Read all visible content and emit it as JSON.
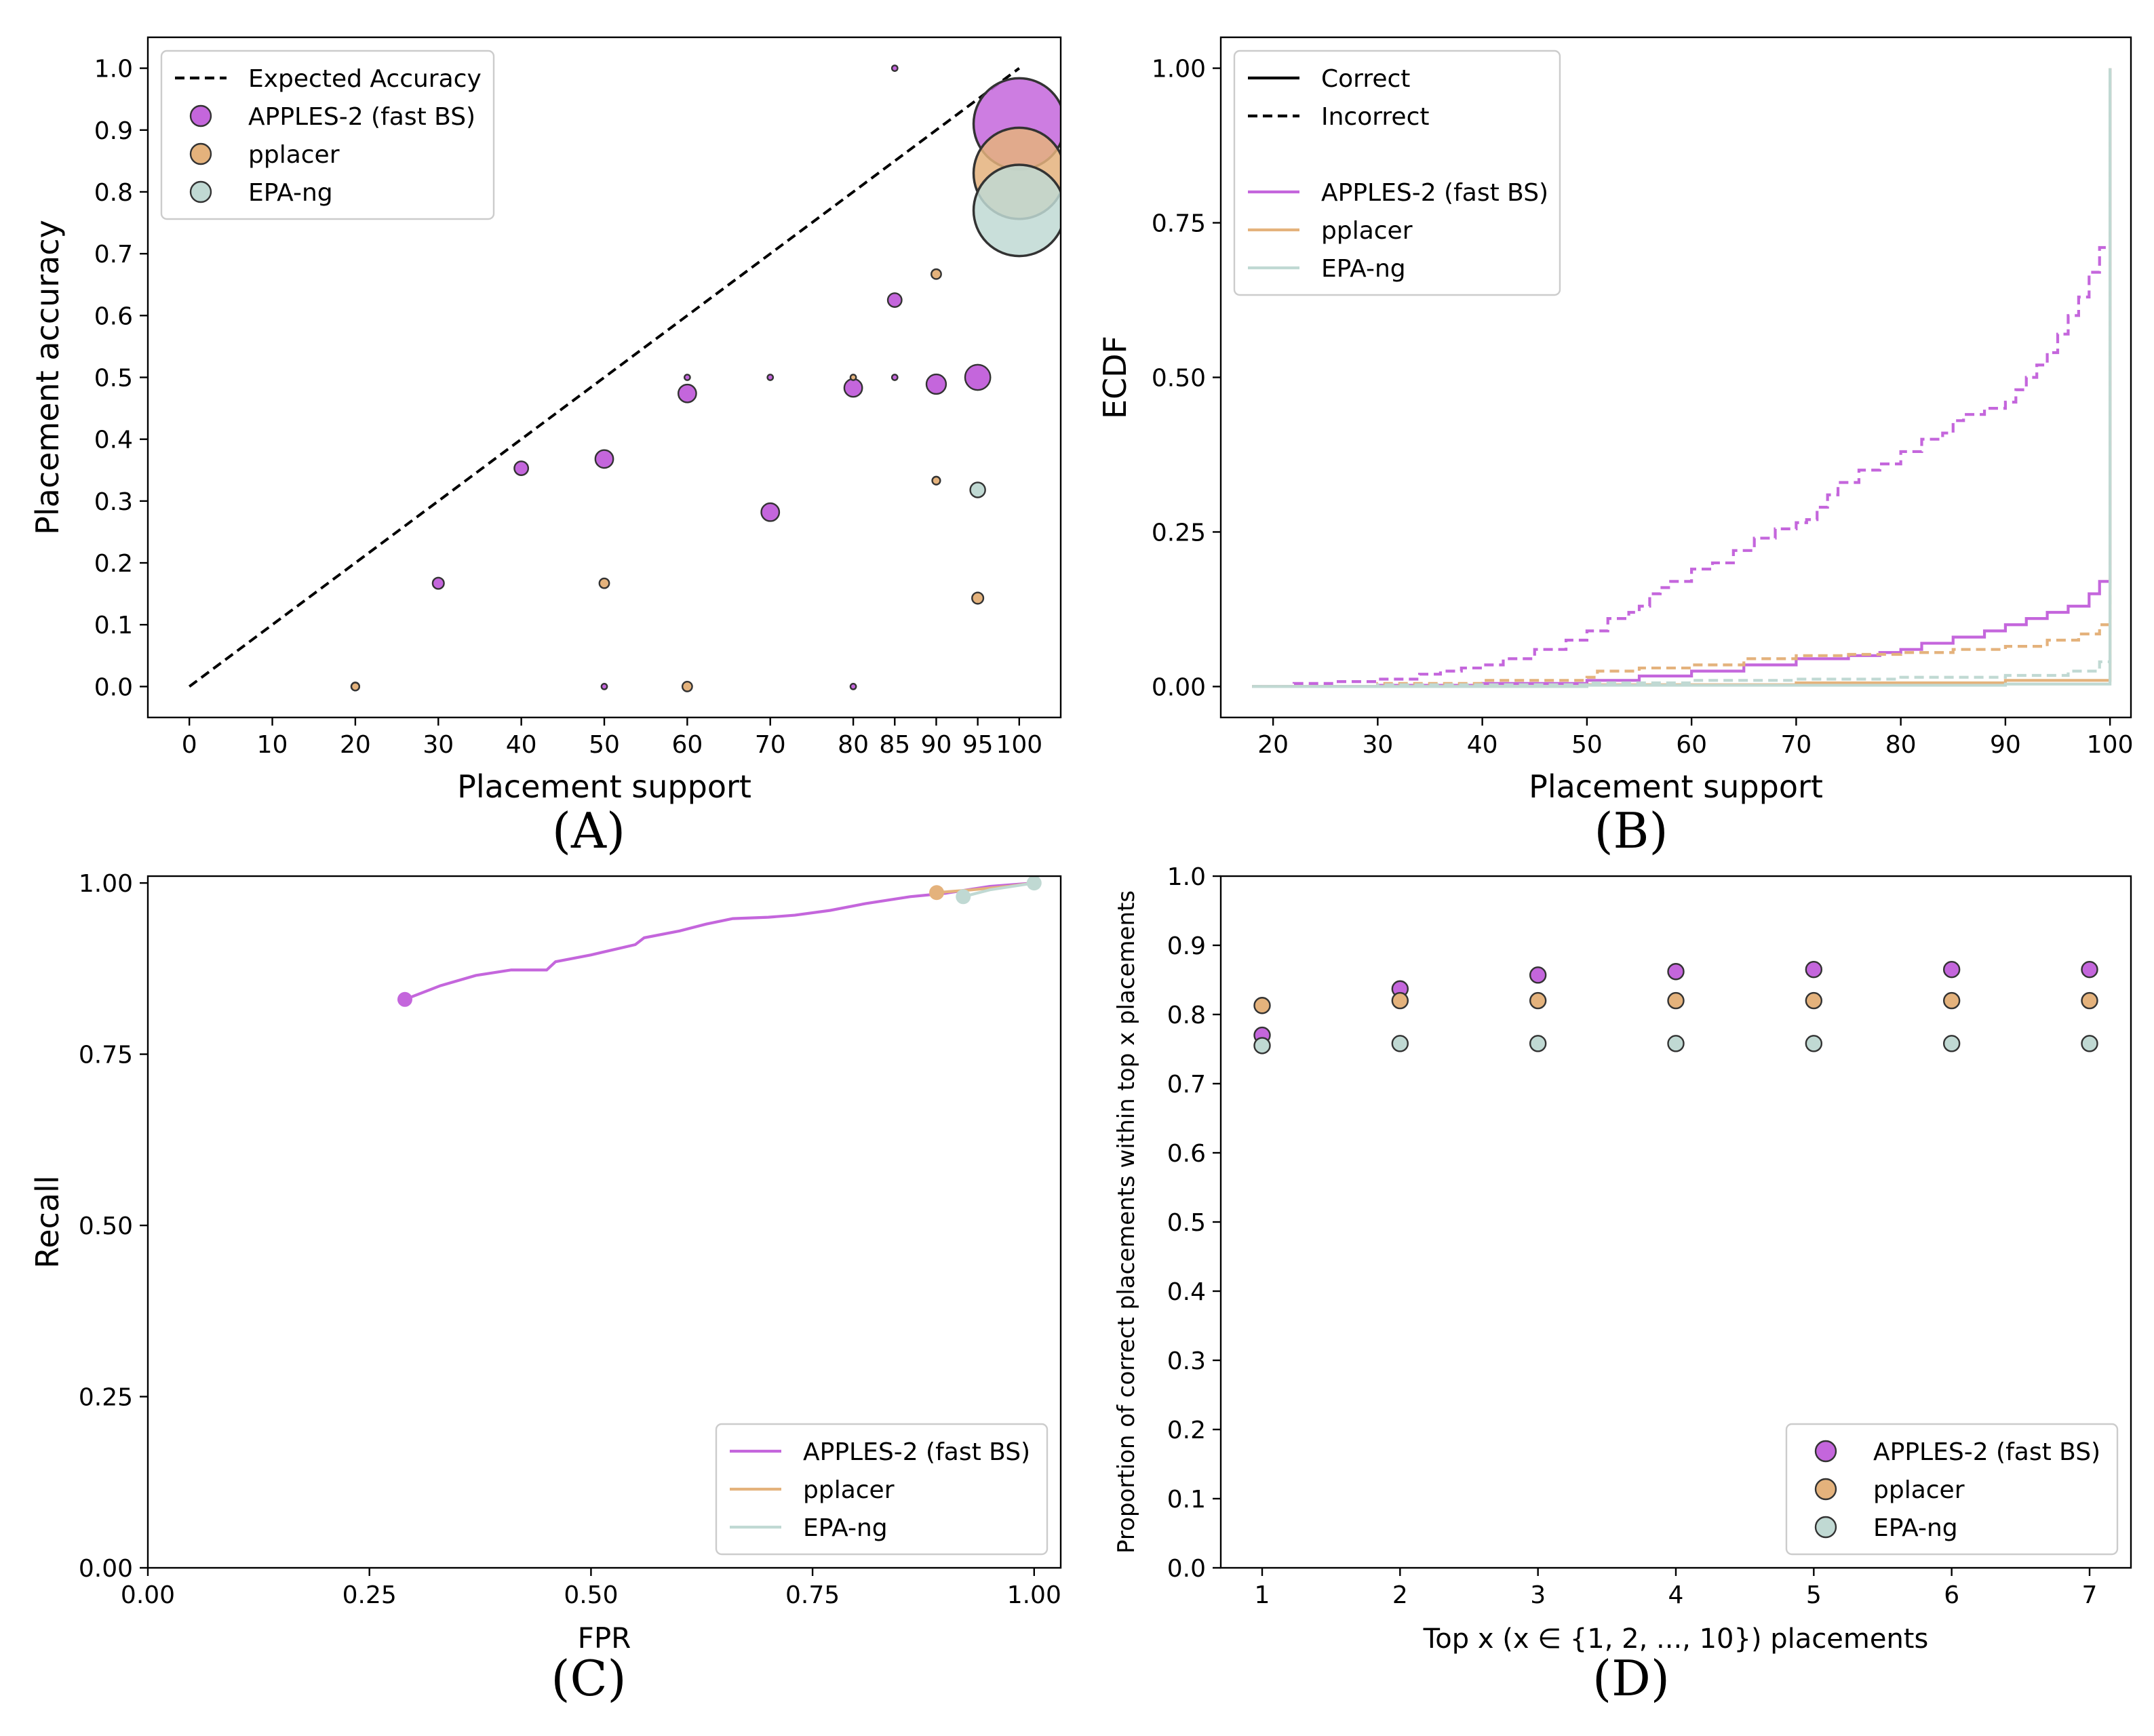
{
  "colors": {
    "apples": "#c466dc",
    "pplacer": "#e4b27c",
    "epa": "#c0d9d3",
    "edge": "#333333",
    "black": "#000000"
  },
  "chart_data": [
    {
      "id": "A",
      "panel_label": "(A)",
      "type": "scatter",
      "xlabel": "Placement support",
      "ylabel": "Placement accuracy",
      "xlim": [
        -5,
        105
      ],
      "ylim": [
        -0.05,
        1.05
      ],
      "xticks": [
        0,
        10,
        20,
        30,
        40,
        50,
        60,
        70,
        80,
        85,
        90,
        95,
        100
      ],
      "yticks": [
        0.0,
        0.1,
        0.2,
        0.3,
        0.4,
        0.5,
        0.6,
        0.7,
        0.8,
        0.9,
        1.0
      ],
      "ytick_labels": [
        "0.0",
        "0.1",
        "0.2",
        "0.3",
        "0.4",
        "0.5",
        "0.6",
        "0.7",
        "0.8",
        "0.9",
        "1.0"
      ],
      "legend": {
        "position": "upper-left",
        "entries": [
          {
            "label": "Expected Accuracy",
            "kind": "dashed-line",
            "color_key": "black"
          },
          {
            "label": "APPLES-2 (fast BS)",
            "kind": "marker",
            "color_key": "apples"
          },
          {
            "label": "pplacer",
            "kind": "marker",
            "color_key": "pplacer"
          },
          {
            "label": "EPA-ng",
            "kind": "marker",
            "color_key": "epa"
          }
        ]
      },
      "reference_line": {
        "label": "Expected Accuracy",
        "x": [
          0,
          100
        ],
        "y": [
          0,
          1
        ]
      },
      "series": [
        {
          "name": "APPLES-2 (fast BS)",
          "color_key": "apples",
          "points": [
            {
              "x": 20,
              "y": 0.0,
              "s": 1
            },
            {
              "x": 30,
              "y": 0.167,
              "s": 2
            },
            {
              "x": 40,
              "y": 0.353,
              "s": 3
            },
            {
              "x": 50,
              "y": 0.368,
              "s": 5
            },
            {
              "x": 50,
              "y": 0.0,
              "s": 0.5
            },
            {
              "x": 60,
              "y": 0.474,
              "s": 5
            },
            {
              "x": 60,
              "y": 0.5,
              "s": 0.5
            },
            {
              "x": 70,
              "y": 0.282,
              "s": 5
            },
            {
              "x": 70,
              "y": 0.5,
              "s": 0.5
            },
            {
              "x": 80,
              "y": 0.483,
              "s": 5
            },
            {
              "x": 80,
              "y": 0.0,
              "s": 0.5
            },
            {
              "x": 85,
              "y": 0.625,
              "s": 3
            },
            {
              "x": 85,
              "y": 1.0,
              "s": 0.5
            },
            {
              "x": 85,
              "y": 0.5,
              "s": 0.5
            },
            {
              "x": 90,
              "y": 0.489,
              "s": 6
            },
            {
              "x": 95,
              "y": 0.5,
              "s": 10
            },
            {
              "x": 100,
              "y": 0.91,
              "s": 130
            }
          ]
        },
        {
          "name": "pplacer",
          "color_key": "pplacer",
          "points": [
            {
              "x": 20,
              "y": 0.0,
              "s": 1
            },
            {
              "x": 50,
              "y": 0.167,
              "s": 1.5
            },
            {
              "x": 60,
              "y": 0.0,
              "s": 1.5
            },
            {
              "x": 80,
              "y": 0.5,
              "s": 0.5
            },
            {
              "x": 90,
              "y": 0.667,
              "s": 1.5
            },
            {
              "x": 90,
              "y": 0.333,
              "s": 1
            },
            {
              "x": 95,
              "y": 0.143,
              "s": 2
            },
            {
              "x": 100,
              "y": 0.83,
              "s": 130
            }
          ]
        },
        {
          "name": "EPA-ng",
          "color_key": "epa",
          "points": [
            {
              "x": 95,
              "y": 0.318,
              "s": 3.5
            },
            {
              "x": 100,
              "y": 0.77,
              "s": 130
            }
          ]
        }
      ]
    },
    {
      "id": "B",
      "panel_label": "(B)",
      "type": "line",
      "xlabel": "Placement support",
      "ylabel": "ECDF",
      "xlim": [
        15,
        102
      ],
      "ylim": [
        -0.05,
        1.05
      ],
      "xticks": [
        20,
        30,
        40,
        50,
        60,
        70,
        80,
        90,
        100
      ],
      "yticks": [
        0.0,
        0.25,
        0.5,
        0.75,
        1.0
      ],
      "ytick_labels": [
        "0.00",
        "0.25",
        "0.50",
        "0.75",
        "1.00"
      ],
      "legend": {
        "position": "upper-left",
        "entries": [
          {
            "label": "Correct",
            "kind": "solid-line",
            "color_key": "black"
          },
          {
            "label": "Incorrect",
            "kind": "dashed-line",
            "color_key": "black"
          },
          {
            "label": "APPLES-2 (fast BS)",
            "kind": "solid-line",
            "color_key": "apples"
          },
          {
            "label": "pplacer",
            "kind": "solid-line",
            "color_key": "pplacer"
          },
          {
            "label": "EPA-ng",
            "kind": "solid-line",
            "color_key": "epa"
          }
        ]
      },
      "series": [
        {
          "name": "APPLES-2 (fast BS) incorrect",
          "color_key": "apples",
          "dashed": true,
          "x": [
            18,
            22,
            26,
            30,
            34,
            36,
            38,
            40,
            42,
            45,
            48,
            50,
            52,
            54,
            55,
            56,
            57,
            58,
            60,
            62,
            64,
            66,
            68,
            70,
            71,
            72,
            73,
            74,
            76,
            78,
            80,
            82,
            84,
            85,
            86,
            88,
            90,
            91,
            92,
            93,
            94,
            95,
            96,
            97,
            98,
            99,
            100,
            100
          ],
          "y": [
            0.0,
            0.005,
            0.008,
            0.012,
            0.02,
            0.025,
            0.03,
            0.035,
            0.045,
            0.06,
            0.075,
            0.09,
            0.11,
            0.12,
            0.13,
            0.15,
            0.16,
            0.17,
            0.19,
            0.2,
            0.22,
            0.24,
            0.255,
            0.265,
            0.27,
            0.29,
            0.31,
            0.33,
            0.35,
            0.36,
            0.38,
            0.4,
            0.41,
            0.43,
            0.44,
            0.45,
            0.46,
            0.48,
            0.5,
            0.52,
            0.54,
            0.57,
            0.6,
            0.63,
            0.67,
            0.71,
            0.72,
            1.0
          ]
        },
        {
          "name": "APPLES-2 (fast BS) correct",
          "color_key": "apples",
          "dashed": false,
          "x": [
            18,
            30,
            40,
            50,
            55,
            60,
            65,
            70,
            75,
            78,
            80,
            82,
            85,
            88,
            90,
            92,
            94,
            96,
            98,
            99,
            100,
            100
          ],
          "y": [
            0.0,
            0.002,
            0.005,
            0.01,
            0.017,
            0.025,
            0.035,
            0.045,
            0.05,
            0.055,
            0.06,
            0.07,
            0.08,
            0.09,
            0.1,
            0.11,
            0.12,
            0.13,
            0.15,
            0.17,
            0.17,
            1.0
          ]
        },
        {
          "name": "pplacer incorrect",
          "color_key": "pplacer",
          "dashed": true,
          "x": [
            18,
            30,
            40,
            50,
            51,
            55,
            60,
            65,
            70,
            75,
            80,
            85,
            90,
            94,
            97,
            99,
            100,
            100
          ],
          "y": [
            0.0,
            0.005,
            0.01,
            0.015,
            0.025,
            0.03,
            0.035,
            0.045,
            0.05,
            0.052,
            0.055,
            0.06,
            0.065,
            0.075,
            0.085,
            0.1,
            0.1,
            1.0
          ]
        },
        {
          "name": "pplacer correct",
          "color_key": "pplacer",
          "dashed": false,
          "x": [
            18,
            50,
            70,
            90,
            100,
            100
          ],
          "y": [
            0.0,
            0.003,
            0.006,
            0.01,
            0.015,
            1.0
          ]
        },
        {
          "name": "EPA-ng incorrect",
          "color_key": "epa",
          "dashed": true,
          "x": [
            18,
            30,
            50,
            60,
            70,
            80,
            90,
            96,
            99,
            100,
            100
          ],
          "y": [
            0.0,
            0.003,
            0.006,
            0.01,
            0.012,
            0.015,
            0.018,
            0.025,
            0.04,
            0.055,
            1.0
          ]
        },
        {
          "name": "EPA-ng correct",
          "color_key": "epa",
          "dashed": false,
          "x": [
            18,
            50,
            90,
            100,
            100
          ],
          "y": [
            0.0,
            0.002,
            0.004,
            0.008,
            1.0
          ]
        }
      ]
    },
    {
      "id": "C",
      "panel_label": "(C)",
      "type": "line",
      "xlabel": "FPR",
      "ylabel": "Recall",
      "xlim": [
        0,
        1.03
      ],
      "ylim": [
        0,
        1.01
      ],
      "xticks": [
        0,
        0.25,
        0.5,
        0.75,
        1.0
      ],
      "xtick_labels": [
        "0.00",
        "0.25",
        "0.50",
        "0.75",
        "1.00"
      ],
      "yticks": [
        0,
        0.25,
        0.5,
        0.75,
        1.0
      ],
      "ytick_labels": [
        "0.00",
        "0.25",
        "0.50",
        "0.75",
        "1.00"
      ],
      "legend": {
        "position": "lower-right",
        "entries": [
          {
            "label": "APPLES-2 (fast BS)",
            "kind": "solid-line",
            "color_key": "apples"
          },
          {
            "label": "pplacer",
            "kind": "solid-line",
            "color_key": "pplacer"
          },
          {
            "label": "EPA-ng",
            "kind": "solid-line",
            "color_key": "epa"
          }
        ]
      },
      "series": [
        {
          "name": "APPLES-2 (fast BS)",
          "color_key": "apples",
          "x": [
            0.29,
            0.33,
            0.37,
            0.41,
            0.45,
            0.46,
            0.5,
            0.55,
            0.56,
            0.6,
            0.63,
            0.66,
            0.7,
            0.73,
            0.77,
            0.81,
            0.86,
            0.9,
            0.95,
            1.0
          ],
          "y": [
            0.83,
            0.85,
            0.865,
            0.873,
            0.873,
            0.885,
            0.895,
            0.91,
            0.92,
            0.93,
            0.94,
            0.948,
            0.95,
            0.953,
            0.96,
            0.97,
            0.98,
            0.985,
            0.995,
            1.0
          ],
          "start_marker": true
        },
        {
          "name": "pplacer",
          "color_key": "pplacer",
          "x": [
            0.89,
            0.93,
            0.97,
            1.0
          ],
          "y": [
            0.986,
            0.99,
            0.995,
            1.0
          ],
          "start_marker": true
        },
        {
          "name": "EPA-ng",
          "color_key": "epa",
          "x": [
            0.92,
            0.95,
            0.98,
            1.0
          ],
          "y": [
            0.98,
            0.99,
            0.996,
            1.0
          ],
          "start_marker": true
        },
        {
          "name": "EPA-ng end",
          "color_key": "epa",
          "x": [
            1.0
          ],
          "y": [
            1.0
          ],
          "start_marker": true
        }
      ]
    },
    {
      "id": "D",
      "panel_label": "(D)",
      "type": "scatter",
      "xlabel": "Top x (x ∈ {1, 2, ..., 10}) placements",
      "ylabel": "Proportion of correct placements within top x placements",
      "xlim": [
        0.7,
        7.3
      ],
      "ylim": [
        0,
        1.0
      ],
      "xticks": [
        1,
        2,
        3,
        4,
        5,
        6,
        7
      ],
      "yticks": [
        0.0,
        0.1,
        0.2,
        0.3,
        0.4,
        0.5,
        0.6,
        0.7,
        0.8,
        0.9,
        1.0
      ],
      "ytick_labels": [
        "0.0",
        "0.1",
        "0.2",
        "0.3",
        "0.4",
        "0.5",
        "0.6",
        "0.7",
        "0.8",
        "0.9",
        "1.0"
      ],
      "legend": {
        "position": "lower-right",
        "entries": [
          {
            "label": "APPLES-2 (fast BS)",
            "kind": "marker",
            "color_key": "apples"
          },
          {
            "label": "pplacer",
            "kind": "marker",
            "color_key": "pplacer"
          },
          {
            "label": "EPA-ng",
            "kind": "marker",
            "color_key": "epa"
          }
        ]
      },
      "series": [
        {
          "name": "APPLES-2 (fast BS)",
          "color_key": "apples",
          "x": [
            1,
            2,
            3,
            4,
            5,
            6,
            7
          ],
          "y": [
            0.77,
            0.837,
            0.857,
            0.862,
            0.865,
            0.865,
            0.865
          ]
        },
        {
          "name": "pplacer",
          "color_key": "pplacer",
          "x": [
            1,
            2,
            3,
            4,
            5,
            6,
            7
          ],
          "y": [
            0.813,
            0.82,
            0.82,
            0.82,
            0.82,
            0.82,
            0.82
          ]
        },
        {
          "name": "EPA-ng",
          "color_key": "epa",
          "x": [
            1,
            2,
            3,
            4,
            5,
            6,
            7
          ],
          "y": [
            0.755,
            0.758,
            0.758,
            0.758,
            0.758,
            0.758,
            0.758
          ]
        }
      ]
    }
  ]
}
